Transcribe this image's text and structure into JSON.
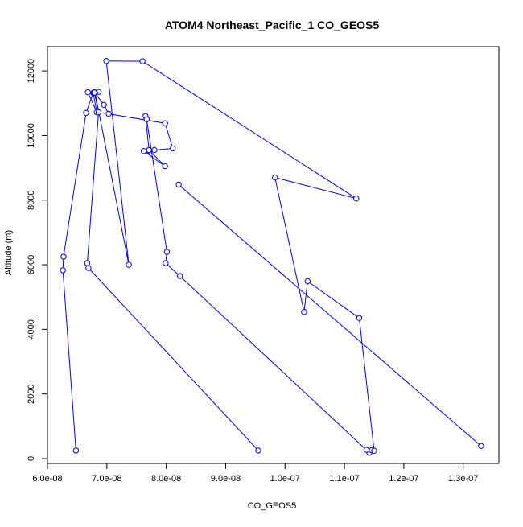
{
  "chart_data": {
    "type": "line",
    "title": "ATOM4 Northeast_Pacific_1 CO_GEOS5",
    "xlabel": "CO_GEOS5",
    "ylabel": "Altitude (m)",
    "xlim": [
      6e-08,
      1.36e-07
    ],
    "ylim": [
      -150,
      12750
    ],
    "x_ticks": [
      6e-08,
      7e-08,
      8e-08,
      9e-08,
      1e-07,
      1.1e-07,
      1.2e-07,
      1.3e-07
    ],
    "x_tick_labels": [
      "6.0e-08",
      "7.0e-08",
      "8.0e-08",
      "9.0e-08",
      "1.0e-07",
      "1.1e-07",
      "1.2e-07",
      "1.3e-07"
    ],
    "y_ticks": [
      0,
      2000,
      4000,
      6000,
      8000,
      10000,
      12000
    ],
    "y_tick_labels": [
      "0",
      "2000",
      "4000",
      "6000",
      "8000",
      "10000",
      "12000"
    ],
    "line_color": "#0000ff",
    "marker": "open-circle",
    "series": [
      {
        "x": [
          6.48e-08,
          6.26e-08,
          6.27e-08,
          6.65e-08,
          6.77e-08,
          6.83e-08,
          6.68e-08,
          6.78e-08,
          6.86e-08,
          6.79e-08,
          6.95e-08,
          7.03e-08,
          7.98e-08,
          8.11e-08,
          7.8e-08,
          7.7e-08,
          7.62e-08,
          7.98e-08,
          7.71e-08,
          7.65e-08,
          7.67e-08,
          8.01e-08,
          7.99e-08,
          8.23e-08,
          1.142e-07,
          1.137e-07,
          1.146e-07,
          1.15e-07,
          1.125e-07,
          1.038e-07,
          1.032e-07,
          9.83e-08,
          1.12e-07,
          7.6e-08,
          6.99e-08,
          7.37e-08,
          6.8e-08,
          6.79e-08,
          6.86e-08,
          6.67e-08,
          6.69e-08,
          9.55e-08
        ],
        "y": [
          250,
          5830,
          6250,
          10700,
          11320,
          10720,
          11340,
          11330,
          11350,
          11340,
          10950,
          10670,
          10380,
          9600,
          9550,
          9530,
          9520,
          9050,
          9550,
          10600,
          10500,
          6400,
          6050,
          5650,
          180,
          270,
          260,
          240,
          4350,
          5490,
          4540,
          8700,
          8050,
          12300,
          12310,
          6000,
          11330,
          11330,
          10720,
          6050,
          5900,
          250
        ]
      },
      {
        "x": [
          8.21e-08,
          1.33e-07
        ],
        "y": [
          8480,
          390
        ]
      }
    ]
  }
}
